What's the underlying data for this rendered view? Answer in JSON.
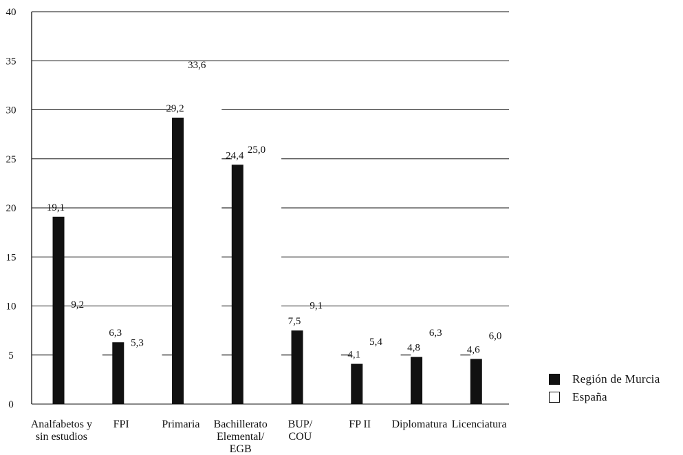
{
  "chart_data": {
    "type": "bar",
    "categories": [
      [
        "Analfabetos y",
        "sin estudios"
      ],
      [
        "FPI"
      ],
      [
        "Primaria"
      ],
      [
        "Bachillerato",
        "Elemental/",
        "EGB"
      ],
      [
        "BUP/",
        "COU"
      ],
      [
        "FP II"
      ],
      [
        "Diplomatura"
      ],
      [
        "Licenciatura"
      ]
    ],
    "series": [
      {
        "name": "Región de Murcia",
        "color": "#111111",
        "values": [
          19.1,
          6.3,
          29.2,
          24.4,
          7.5,
          4.1,
          4.8,
          4.6
        ],
        "labels": [
          "19,1",
          "6,3",
          "29,2",
          "24,4",
          "7,5",
          "4,1",
          "4,8",
          "4,6"
        ]
      },
      {
        "name": "España",
        "color": "#ffffff",
        "values": [
          9.2,
          5.3,
          33.6,
          25.0,
          9.1,
          5.4,
          6.3,
          6.0
        ],
        "labels": [
          "9,2",
          "5,3",
          "33,6",
          "25,0",
          "9,1",
          "5,4",
          "6,3",
          "6,0"
        ]
      }
    ],
    "yticks": [
      "0",
      "5",
      "10",
      "15",
      "20",
      "25",
      "30",
      "35",
      "40"
    ],
    "ylim": [
      0,
      40
    ],
    "grid": true,
    "legend_position": "bottom-right"
  },
  "legend": [
    {
      "label": "Región de Murcia",
      "color": "#111111"
    },
    {
      "label": "España",
      "color": "#ffffff"
    }
  ]
}
